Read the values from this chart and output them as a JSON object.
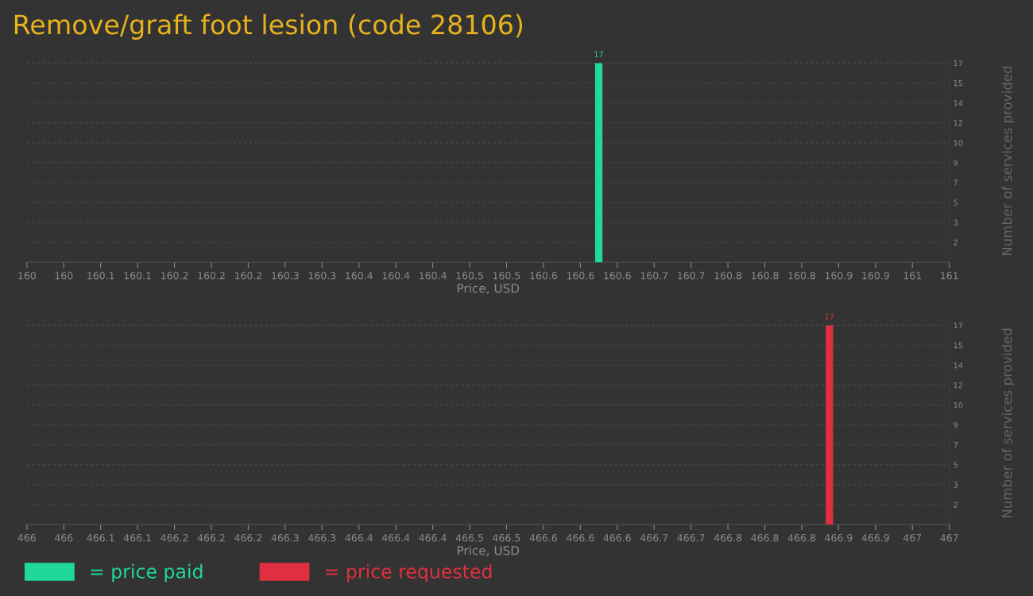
{
  "chart_data": [
    {
      "type": "bar",
      "title": "Remove/graft foot lesion (code 28106)",
      "xlabel": "Price, USD",
      "ylabel": "Number of services provided",
      "series": [
        {
          "name": "= price paid",
          "color": "#20d89a",
          "x": [
            160.62
          ],
          "values": [
            17
          ]
        }
      ],
      "xlim": [
        160,
        161
      ],
      "xticks": [
        {
          "value": 160,
          "label": "160"
        },
        {
          "value": 160.04,
          "label": "160"
        },
        {
          "value": 160.08,
          "label": "160.1"
        },
        {
          "value": 160.12,
          "label": "160.1"
        },
        {
          "value": 160.16,
          "label": "160.2"
        },
        {
          "value": 160.2,
          "label": "160.2"
        },
        {
          "value": 160.24,
          "label": "160.2"
        },
        {
          "value": 160.28,
          "label": "160.3"
        },
        {
          "value": 160.32,
          "label": "160.3"
        },
        {
          "value": 160.36,
          "label": "160.4"
        },
        {
          "value": 160.4,
          "label": "160.4"
        },
        {
          "value": 160.44,
          "label": "160.4"
        },
        {
          "value": 160.48,
          "label": "160.5"
        },
        {
          "value": 160.52,
          "label": "160.5"
        },
        {
          "value": 160.56,
          "label": "160.6"
        },
        {
          "value": 160.6,
          "label": "160.6"
        },
        {
          "value": 160.64,
          "label": "160.6"
        },
        {
          "value": 160.68,
          "label": "160.7"
        },
        {
          "value": 160.72,
          "label": "160.7"
        },
        {
          "value": 160.76,
          "label": "160.8"
        },
        {
          "value": 160.8,
          "label": "160.8"
        },
        {
          "value": 160.84,
          "label": "160.8"
        },
        {
          "value": 160.88,
          "label": "160.9"
        },
        {
          "value": 160.92,
          "label": "160.9"
        },
        {
          "value": 160.96,
          "label": "161"
        },
        {
          "value": 161,
          "label": "161"
        }
      ],
      "ylim": [
        0,
        17.3
      ],
      "yticks": [
        {
          "value": 1.7,
          "label": "2"
        },
        {
          "value": 3.4,
          "label": "3"
        },
        {
          "value": 5.1,
          "label": "5"
        },
        {
          "value": 6.8,
          "label": "7"
        },
        {
          "value": 8.5,
          "label": "9"
        },
        {
          "value": 10.2,
          "label": "10"
        },
        {
          "value": 11.9,
          "label": "12"
        },
        {
          "value": 13.6,
          "label": "14"
        },
        {
          "value": 15.3,
          "label": "15"
        },
        {
          "value": 17,
          "label": "17"
        }
      ],
      "grid": "y",
      "data_labels": true
    },
    {
      "type": "bar",
      "xlabel": "Price, USD",
      "ylabel": "Number of services provided",
      "series": [
        {
          "name": "= price requested",
          "color": "#e0303f",
          "x": [
            466.87
          ],
          "values": [
            17
          ]
        }
      ],
      "xlim": [
        466,
        467
      ],
      "xticks": [
        {
          "value": 466,
          "label": "466"
        },
        {
          "value": 466.04,
          "label": "466"
        },
        {
          "value": 466.08,
          "label": "466.1"
        },
        {
          "value": 466.12,
          "label": "466.1"
        },
        {
          "value": 466.16,
          "label": "466.2"
        },
        {
          "value": 466.2,
          "label": "466.2"
        },
        {
          "value": 466.24,
          "label": "466.2"
        },
        {
          "value": 466.28,
          "label": "466.3"
        },
        {
          "value": 466.32,
          "label": "466.3"
        },
        {
          "value": 466.36,
          "label": "466.4"
        },
        {
          "value": 466.4,
          "label": "466.4"
        },
        {
          "value": 466.44,
          "label": "466.4"
        },
        {
          "value": 466.48,
          "label": "466.5"
        },
        {
          "value": 466.52,
          "label": "466.5"
        },
        {
          "value": 466.56,
          "label": "466.6"
        },
        {
          "value": 466.6,
          "label": "466.6"
        },
        {
          "value": 466.64,
          "label": "466.6"
        },
        {
          "value": 466.68,
          "label": "466.7"
        },
        {
          "value": 466.72,
          "label": "466.7"
        },
        {
          "value": 466.76,
          "label": "466.8"
        },
        {
          "value": 466.8,
          "label": "466.8"
        },
        {
          "value": 466.84,
          "label": "466.8"
        },
        {
          "value": 466.88,
          "label": "466.9"
        },
        {
          "value": 466.92,
          "label": "466.9"
        },
        {
          "value": 466.96,
          "label": "467"
        },
        {
          "value": 467,
          "label": "467"
        }
      ],
      "ylim": [
        0,
        17.3
      ],
      "yticks": [
        {
          "value": 1.7,
          "label": "2"
        },
        {
          "value": 3.4,
          "label": "3"
        },
        {
          "value": 5.1,
          "label": "5"
        },
        {
          "value": 6.8,
          "label": "7"
        },
        {
          "value": 8.5,
          "label": "9"
        },
        {
          "value": 10.2,
          "label": "10"
        },
        {
          "value": 11.9,
          "label": "12"
        },
        {
          "value": 13.6,
          "label": "14"
        },
        {
          "value": 15.3,
          "label": "15"
        },
        {
          "value": 17,
          "label": "17"
        }
      ],
      "grid": "y",
      "data_labels": true,
      "legend": "bottom"
    }
  ]
}
